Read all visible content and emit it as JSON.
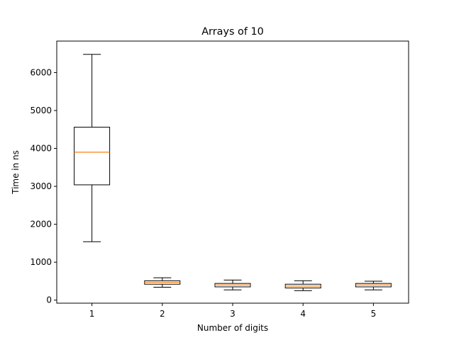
{
  "chart_data": {
    "type": "box",
    "title": "Arrays of 10",
    "xlabel": "Number of digits",
    "ylabel": "Time in ns",
    "categories": [
      "1",
      "2",
      "3",
      "4",
      "5"
    ],
    "ylim": [
      -80,
      6830
    ],
    "yticks": [
      0,
      1000,
      2000,
      3000,
      4000,
      5000,
      6000
    ],
    "grid": false,
    "boxes": [
      {
        "label": "1",
        "whisker_low": 1540,
        "q1": 3040,
        "median": 3900,
        "q3": 4560,
        "whisker_high": 6480
      },
      {
        "label": "2",
        "whisker_low": 340,
        "q1": 420,
        "median": 470,
        "q3": 510,
        "whisker_high": 590
      },
      {
        "label": "3",
        "whisker_low": 270,
        "q1": 350,
        "median": 400,
        "q3": 440,
        "whisker_high": 530
      },
      {
        "label": "4",
        "whisker_low": 250,
        "q1": 320,
        "median": 370,
        "q3": 420,
        "whisker_high": 510
      },
      {
        "label": "5",
        "whisker_low": 270,
        "q1": 350,
        "median": 400,
        "q3": 440,
        "whisker_high": 500
      }
    ],
    "colors": {
      "box": "#000000",
      "median": "#ff7f0e",
      "axis": "#000000"
    }
  }
}
